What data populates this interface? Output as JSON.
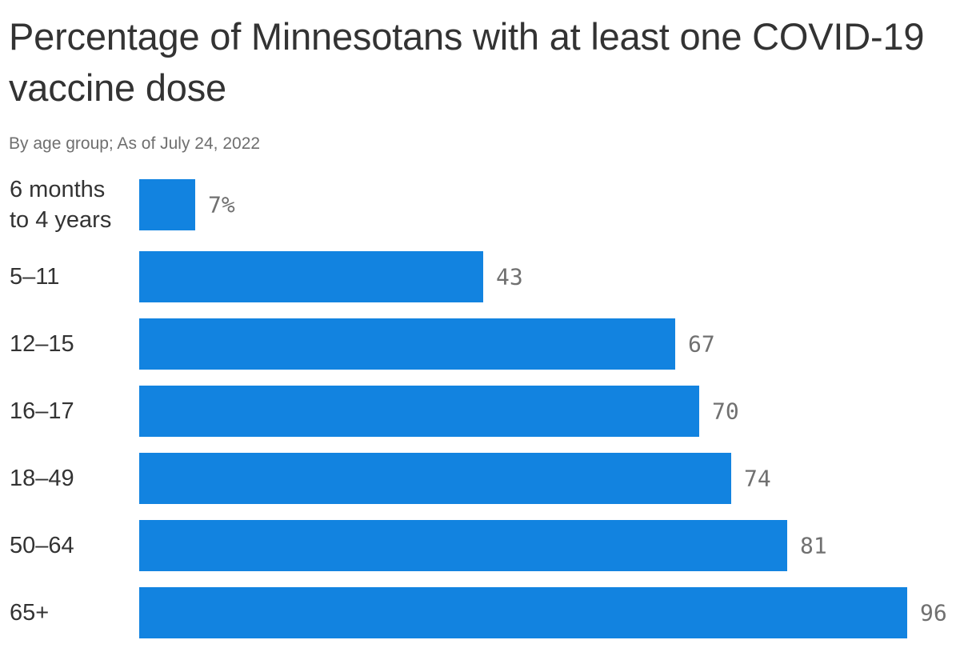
{
  "chart_data": {
    "type": "bar",
    "orientation": "horizontal",
    "title": "Percentage of Minnesotans with at least one COVID-19 vaccine dose",
    "subtitle": "By age group; As of July 24, 2022",
    "categories": [
      [
        "6 months",
        "to 4 years"
      ],
      [
        "5–11"
      ],
      [
        "12–15"
      ],
      [
        "16–17"
      ],
      [
        "18–49"
      ],
      [
        "50–64"
      ],
      [
        "65+"
      ]
    ],
    "values": [
      7,
      43,
      67,
      70,
      74,
      81,
      96
    ],
    "value_labels": [
      "7%",
      "43",
      "67",
      "70",
      "74",
      "81",
      "96"
    ],
    "xlim": [
      0,
      100
    ],
    "grid": false,
    "legend": "none",
    "bar_color": "#1283e0"
  }
}
